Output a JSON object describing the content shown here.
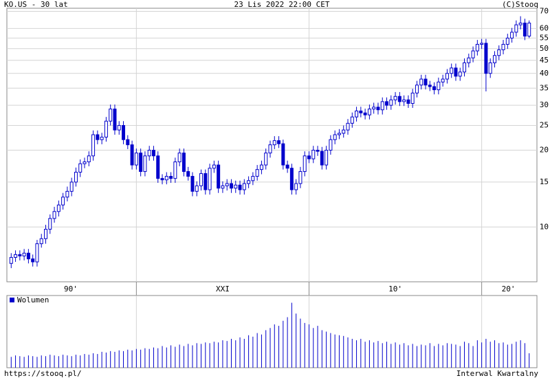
{
  "chart_data": {
    "type": "candlestick",
    "title": "KO.US - 30 lat",
    "date": "23 Lis 2022 22:00 CET",
    "copyright": "(C)Stooq",
    "url": "https://stooq.pl/",
    "interval": "Interwal Kwartalny",
    "color": "#0000cc",
    "log_scale": true,
    "grid": true,
    "xlim": [
      1992.5,
      2023.2
    ],
    "xgrid": [
      2000,
      2010,
      2020
    ],
    "xticks": [
      {
        "value": 1996.2,
        "label": "90'"
      },
      {
        "value": 2005,
        "label": "XXI"
      },
      {
        "value": 2015,
        "label": "10'"
      },
      {
        "value": 2021.55,
        "label": "20'"
      }
    ],
    "ylim": [
      6.1,
      72
    ],
    "yticks": [
      10,
      15,
      20,
      25,
      30,
      35,
      40,
      45,
      50,
      55,
      60,
      70
    ],
    "x": [
      1992.75,
      1993,
      1993.25,
      1993.5,
      1993.75,
      1994,
      1994.25,
      1994.5,
      1994.75,
      1995,
      1995.25,
      1995.5,
      1995.75,
      1996,
      1996.25,
      1996.5,
      1996.75,
      1997,
      1997.25,
      1997.5,
      1997.75,
      1998,
      1998.25,
      1998.5,
      1998.75,
      1999,
      1999.25,
      1999.5,
      1999.75,
      2000,
      2000.25,
      2000.5,
      2000.75,
      2001,
      2001.25,
      2001.5,
      2001.75,
      2002,
      2002.25,
      2002.5,
      2002.75,
      2003,
      2003.25,
      2003.5,
      2003.75,
      2004,
      2004.25,
      2004.5,
      2004.75,
      2005,
      2005.25,
      2005.5,
      2005.75,
      2006,
      2006.25,
      2006.5,
      2006.75,
      2007,
      2007.25,
      2007.5,
      2007.75,
      2008,
      2008.25,
      2008.5,
      2008.75,
      2009,
      2009.25,
      2009.5,
      2009.75,
      2010,
      2010.25,
      2010.5,
      2010.75,
      2011,
      2011.25,
      2011.5,
      2011.75,
      2012,
      2012.25,
      2012.5,
      2012.75,
      2013,
      2013.25,
      2013.5,
      2013.75,
      2014,
      2014.25,
      2014.5,
      2014.75,
      2015,
      2015.25,
      2015.5,
      2015.75,
      2016,
      2016.25,
      2016.5,
      2016.75,
      2017,
      2017.25,
      2017.5,
      2017.75,
      2018,
      2018.25,
      2018.5,
      2018.75,
      2019,
      2019.25,
      2019.5,
      2019.75,
      2020,
      2020.25,
      2020.5,
      2020.75,
      2021,
      2021.25,
      2021.5,
      2021.75,
      2022,
      2022.25,
      2022.5,
      2022.75
    ],
    "open": [
      7.2,
      7.6,
      7.8,
      7.7,
      7.9,
      7.5,
      7.3,
      8.6,
      9.0,
      9.8,
      10.8,
      11.5,
      12.2,
      13.1,
      13.8,
      15.0,
      16.4,
      17.7,
      18.0,
      19.0,
      23.0,
      22.0,
      22.5,
      26.0,
      29.0,
      24.0,
      25.0,
      22.0,
      21.0,
      17.5,
      19.5,
      16.5,
      19.0,
      20.0,
      19.0,
      15.5,
      15.3,
      15.8,
      15.5,
      18.0,
      19.5,
      16.5,
      15.8,
      13.8,
      14.5,
      16.2,
      14.0,
      17.0,
      17.5,
      14.2,
      14.5,
      14.8,
      14.2,
      14.6,
      14.0,
      14.8,
      15.2,
      15.8,
      16.8,
      17.5,
      19.5,
      21.0,
      21.8,
      21.2,
      17.5,
      17.0,
      14.0,
      14.8,
      16.5,
      19.0,
      18.5,
      20.0,
      19.8,
      17.5,
      20.0,
      22.0,
      23.0,
      23.3,
      24.0,
      25.5,
      27.0,
      28.5,
      28.0,
      27.5,
      29.0,
      29.5,
      28.8,
      31.0,
      30.0,
      31.5,
      32.5,
      31.0,
      31.5,
      30.5,
      33.5,
      36.0,
      38.0,
      36.0,
      35.5,
      34.5,
      37.0,
      38.0,
      40.0,
      42.0,
      39.0,
      40.5,
      44.0,
      46.0,
      49.0,
      52.0,
      52.5,
      40.0,
      44.0,
      47.0,
      49.5,
      52.0,
      55.0,
      58.0,
      62.0,
      63.0,
      56.0
    ],
    "high": [
      7.9,
      8.1,
      8.1,
      8.2,
      8.2,
      7.8,
      8.9,
      9.4,
      10.2,
      11.2,
      12.0,
      12.7,
      13.6,
      14.4,
      15.6,
      17.1,
      18.4,
      18.7,
      19.8,
      23.9,
      23.9,
      23.4,
      27.0,
      30.2,
      30.2,
      26.0,
      26.0,
      22.9,
      21.8,
      20.3,
      20.3,
      19.8,
      20.8,
      20.8,
      19.8,
      16.1,
      16.4,
      16.4,
      18.7,
      20.3,
      20.3,
      17.2,
      16.4,
      15.1,
      16.8,
      16.8,
      17.7,
      18.2,
      18.2,
      15.1,
      15.4,
      15.4,
      15.2,
      15.2,
      15.4,
      15.8,
      16.4,
      17.5,
      18.2,
      20.3,
      21.8,
      22.7,
      22.7,
      22.0,
      18.2,
      17.7,
      15.4,
      17.2,
      19.8,
      19.8,
      20.8,
      20.8,
      20.6,
      20.8,
      22.9,
      23.9,
      24.2,
      25.0,
      26.5,
      28.1,
      29.6,
      29.6,
      29.1,
      30.2,
      30.7,
      30.7,
      32.2,
      32.2,
      32.8,
      33.8,
      33.8,
      32.8,
      32.8,
      34.8,
      37.4,
      39.5,
      39.5,
      37.4,
      36.9,
      38.5,
      39.5,
      41.6,
      43.7,
      43.7,
      42.1,
      45.8,
      47.8,
      51.0,
      54.1,
      54.6,
      54.6,
      45.8,
      48.9,
      51.5,
      54.1,
      57.2,
      60.3,
      64.5,
      67.0,
      65.5,
      64.5
    ],
    "low": [
      6.9,
      7.3,
      7.4,
      7.4,
      7.2,
      7.0,
      7.0,
      8.3,
      8.6,
      9.4,
      10.4,
      11.0,
      11.7,
      12.6,
      13.2,
      14.4,
      15.7,
      17.0,
      17.3,
      18.2,
      21.1,
      21.1,
      21.6,
      25.0,
      23.0,
      23.0,
      21.1,
      20.2,
      16.8,
      16.8,
      15.8,
      15.8,
      18.2,
      18.2,
      14.9,
      14.7,
      14.7,
      14.9,
      14.9,
      17.3,
      15.8,
      15.2,
      13.2,
      13.2,
      13.9,
      13.4,
      13.4,
      16.3,
      13.6,
      13.6,
      13.9,
      13.6,
      13.6,
      13.4,
      13.4,
      14.2,
      14.6,
      15.2,
      16.1,
      16.8,
      18.7,
      20.2,
      20.4,
      16.8,
      16.3,
      13.4,
      13.4,
      14.2,
      15.8,
      17.8,
      17.8,
      19.0,
      16.8,
      16.8,
      19.2,
      21.1,
      22.1,
      22.4,
      23.0,
      24.5,
      25.9,
      26.9,
      26.4,
      26.4,
      27.8,
      27.6,
      27.6,
      28.8,
      28.8,
      30.2,
      29.8,
      29.8,
      29.3,
      29.3,
      32.2,
      34.6,
      34.6,
      34.1,
      33.1,
      33.1,
      35.5,
      36.5,
      38.4,
      37.4,
      37.4,
      38.9,
      42.2,
      44.2,
      47.0,
      49.9,
      34.0,
      38.4,
      42.2,
      45.1,
      47.5,
      49.9,
      52.8,
      55.7,
      59.5,
      54.0,
      55.0
    ],
    "close": [
      7.6,
      7.8,
      7.7,
      7.9,
      7.5,
      7.3,
      8.6,
      9.0,
      9.8,
      10.8,
      11.5,
      12.2,
      13.1,
      13.8,
      15.0,
      16.4,
      17.7,
      18.0,
      19.0,
      23.0,
      22.0,
      22.5,
      26.0,
      29.0,
      24.0,
      25.0,
      22.0,
      21.0,
      17.5,
      19.5,
      16.5,
      19.0,
      20.0,
      19.0,
      15.5,
      15.3,
      15.8,
      15.5,
      18.0,
      19.5,
      16.5,
      15.8,
      13.8,
      14.5,
      16.2,
      14.0,
      17.0,
      17.5,
      14.2,
      14.5,
      14.8,
      14.2,
      14.6,
      14.0,
      14.8,
      15.2,
      15.8,
      16.8,
      17.5,
      19.5,
      21.0,
      21.8,
      21.2,
      17.5,
      17.0,
      14.0,
      14.8,
      16.5,
      19.0,
      18.5,
      20.0,
      19.8,
      17.5,
      20.0,
      22.0,
      23.0,
      23.3,
      24.0,
      25.5,
      27.0,
      28.5,
      28.0,
      27.5,
      29.0,
      29.5,
      28.8,
      31.0,
      30.0,
      31.5,
      32.5,
      31.0,
      31.5,
      30.5,
      33.5,
      36.0,
      38.0,
      36.0,
      35.5,
      34.5,
      37.0,
      38.0,
      40.0,
      42.0,
      39.0,
      40.5,
      44.0,
      46.0,
      49.0,
      52.0,
      52.5,
      40.0,
      44.0,
      47.0,
      49.5,
      52.0,
      55.0,
      58.0,
      62.0,
      63.0,
      56.0,
      63.0
    ],
    "volume": {
      "name": "Wolumen",
      "color": "#0000cc",
      "ylim": [
        0,
        100
      ],
      "values": [
        15,
        17,
        16,
        15,
        17,
        16,
        15,
        17,
        16,
        18,
        17,
        16,
        18,
        17,
        16,
        18,
        17,
        19,
        18,
        20,
        19,
        22,
        21,
        23,
        22,
        24,
        23,
        25,
        24,
        26,
        25,
        27,
        26,
        28,
        27,
        30,
        28,
        31,
        29,
        32,
        30,
        33,
        31,
        34,
        33,
        35,
        34,
        36,
        35,
        38,
        37,
        40,
        38,
        42,
        40,
        45,
        43,
        48,
        46,
        52,
        55,
        60,
        58,
        65,
        70,
        90,
        75,
        68,
        62,
        60,
        55,
        58,
        52,
        50,
        48,
        46,
        45,
        44,
        42,
        40,
        38,
        40,
        36,
        38,
        35,
        37,
        34,
        36,
        33,
        35,
        32,
        34,
        31,
        33,
        30,
        32,
        31,
        34,
        30,
        33,
        31,
        34,
        33,
        32,
        30,
        36,
        34,
        30,
        38,
        35,
        40,
        36,
        38,
        34,
        35,
        32,
        33,
        36,
        38,
        34,
        20
      ]
    }
  }
}
